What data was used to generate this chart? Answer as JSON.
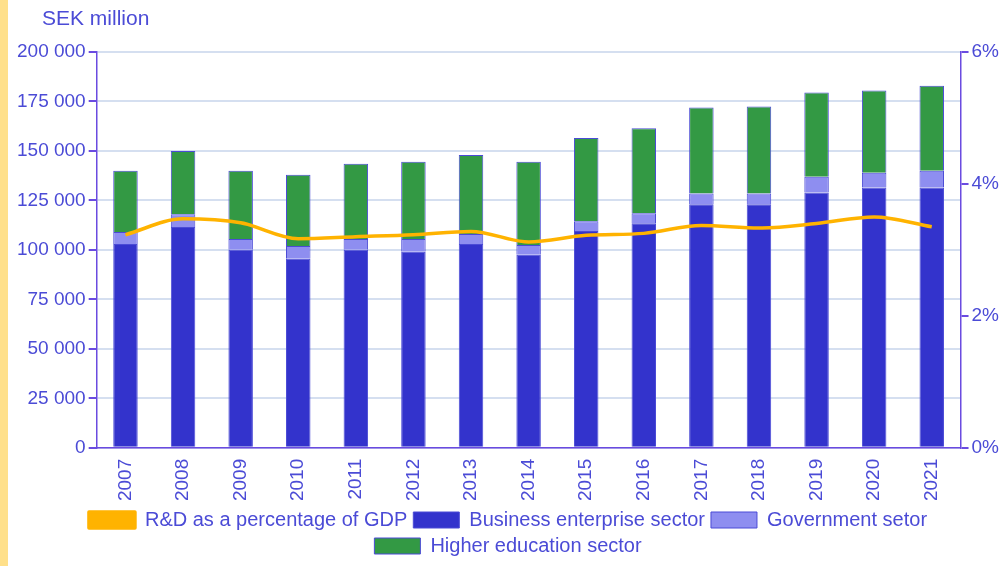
{
  "chart_data": {
    "type": "bar",
    "stacked": true,
    "ylabel": "SEK million",
    "categories": [
      "2007",
      "2008",
      "2009",
      "2010",
      "2011",
      "2012",
      "2013",
      "2014",
      "2015",
      "2016",
      "2017",
      "2018",
      "2019",
      "2020",
      "2021"
    ],
    "series": [
      {
        "name": "Business enterprise sector",
        "color": "#3333cc",
        "values": [
          103000,
          111500,
          100000,
          95500,
          100000,
          99000,
          103000,
          97500,
          109500,
          113500,
          123000,
          123000,
          129000,
          131500,
          131500
        ]
      },
      {
        "name": "Government setor",
        "color": "#8e8ef0",
        "values": [
          6000,
          6500,
          5500,
          6500,
          5500,
          6500,
          5000,
          5000,
          5000,
          5000,
          5500,
          5500,
          8000,
          7500,
          8500
        ]
      },
      {
        "name": "Higher education sector",
        "color": "#339944",
        "values": [
          31000,
          32000,
          34500,
          36000,
          38000,
          39000,
          40000,
          42000,
          42000,
          43000,
          43500,
          44000,
          42500,
          41500,
          43000
        ]
      },
      {
        "name": "R&D as a percentage of GDP",
        "type": "line",
        "axis": "y2",
        "color": "#ffb300",
        "values": [
          3.23,
          3.47,
          3.41,
          3.17,
          3.2,
          3.23,
          3.28,
          3.12,
          3.22,
          3.25,
          3.37,
          3.33,
          3.4,
          3.5,
          3.35
        ]
      }
    ],
    "ylim": [
      0,
      200000
    ],
    "yticks": [
      {
        "value": 0,
        "label": "0"
      },
      {
        "value": 25000,
        "label": "25 000"
      },
      {
        "value": 50000,
        "label": "50 000"
      },
      {
        "value": 75000,
        "label": "75 000"
      },
      {
        "value": 100000,
        "label": "100 000"
      },
      {
        "value": 125000,
        "label": "125 000"
      },
      {
        "value": 150000,
        "label": "150 000"
      },
      {
        "value": 175000,
        "label": "175 000"
      },
      {
        "value": 200000,
        "label": "200 000"
      }
    ],
    "y2lim": [
      0,
      6
    ],
    "y2ticks": [
      {
        "value": 0,
        "label": "0%"
      },
      {
        "value": 2,
        "label": "2%"
      },
      {
        "value": 4,
        "label": "4%"
      },
      {
        "value": 6,
        "label": "6%"
      }
    ],
    "grid": "y",
    "legend": "bottom",
    "marker": "none",
    "line_style": "solid"
  }
}
